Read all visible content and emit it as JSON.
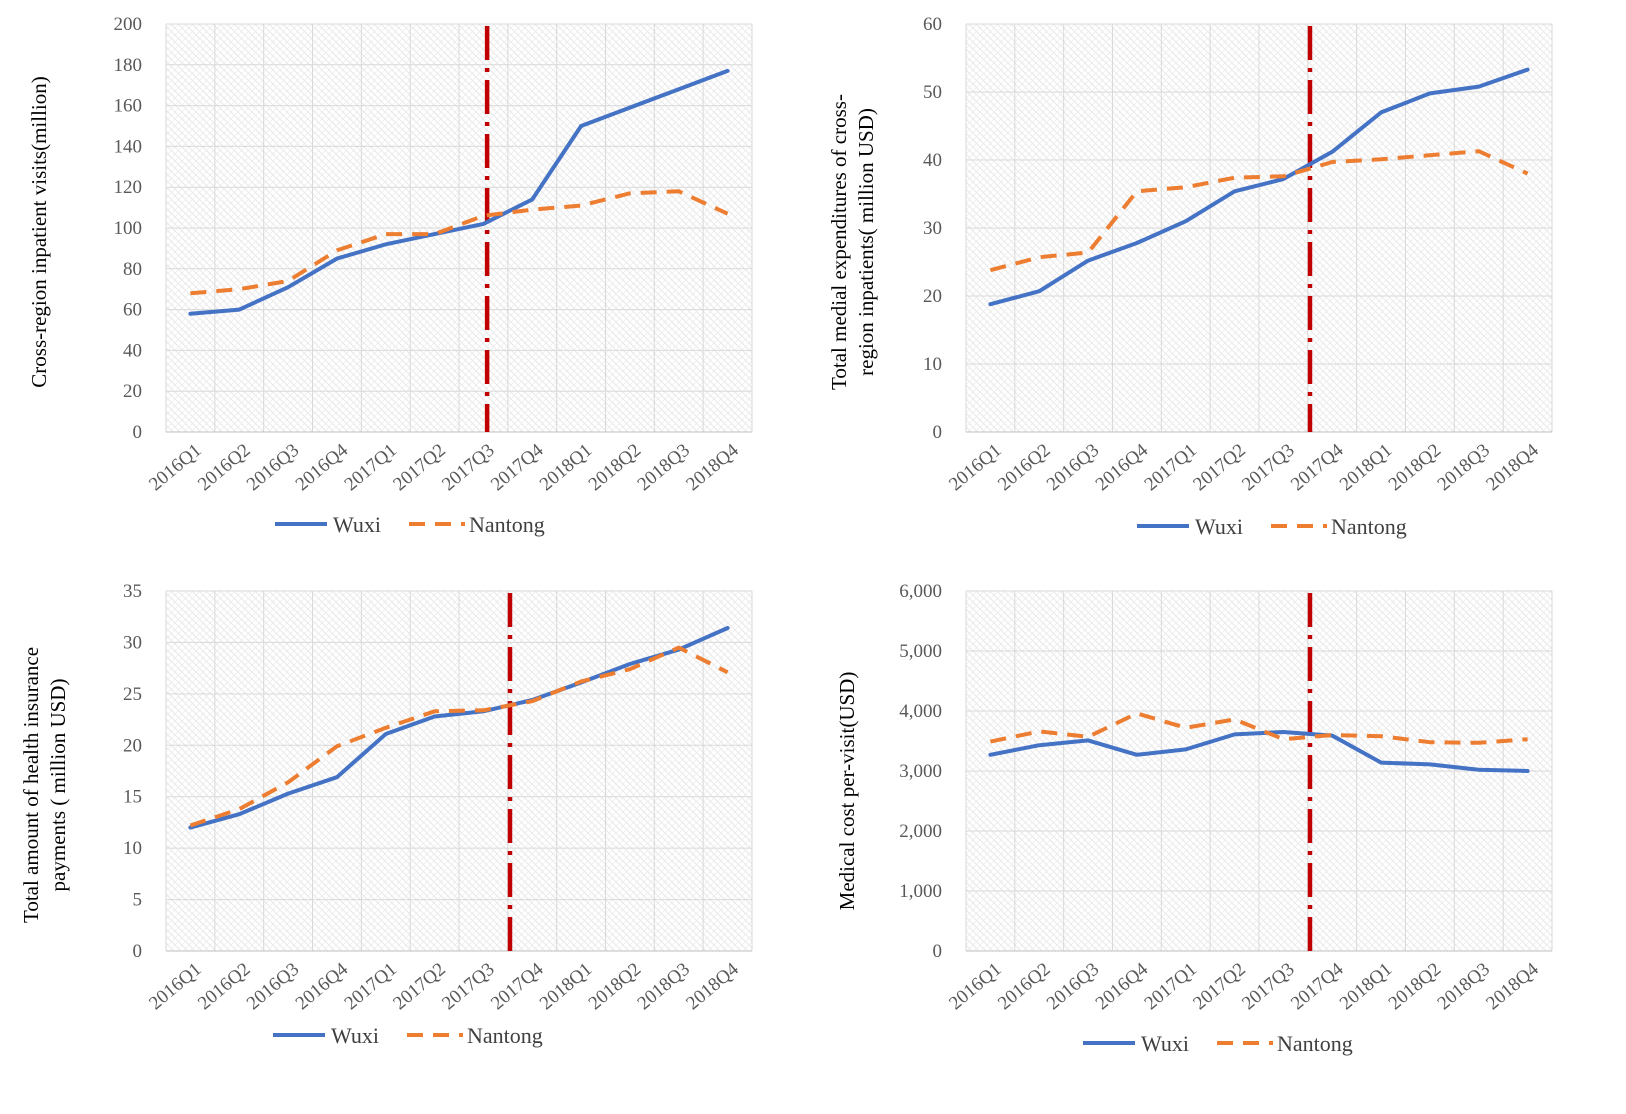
{
  "colors": {
    "wuxi": "#4472C4",
    "nantong": "#ED7D31",
    "policy_line": "#C00000",
    "grid": "#d9d9d9"
  },
  "chart_data": [
    {
      "type": "line",
      "ylabel": [
        "Cross-region inpatient visits(million)"
      ],
      "categories": [
        "2016Q1",
        "2016Q2",
        "2016Q3",
        "2016Q4",
        "2017Q1",
        "2017Q2",
        "2017Q3",
        "2017Q4",
        "2018Q1",
        "2018Q2",
        "2018Q3",
        "2018Q4"
      ],
      "ylim": [
        0,
        200
      ],
      "yticks": [
        0,
        20,
        40,
        60,
        80,
        100,
        120,
        140,
        160,
        180,
        200
      ],
      "ytick_labels": [
        "0",
        "20",
        "40",
        "60",
        "80",
        "100",
        "120",
        "140",
        "160",
        "180",
        "200"
      ],
      "policy_marker": "between 2017Q3 and 2017Q4",
      "series": [
        {
          "name": "Wuxi",
          "values": [
            58,
            60,
            71,
            85,
            92,
            97,
            102,
            114,
            150,
            159,
            168,
            177
          ]
        },
        {
          "name": "Nantong",
          "values": [
            68,
            70,
            74,
            89,
            97,
            97,
            106,
            109,
            111,
            117,
            118,
            107
          ]
        }
      ]
    },
    {
      "type": "line",
      "ylabel": [
        "Total medial expenditures of cross-",
        "region inpatients( million USD)"
      ],
      "categories": [
        "2016Q1",
        "2016Q2",
        "2016Q3",
        "2016Q4",
        "2017Q1",
        "2017Q2",
        "2017Q3",
        "2017Q4",
        "2018Q1",
        "2018Q2",
        "2018Q3",
        "2018Q4"
      ],
      "ylim": [
        0,
        60
      ],
      "yticks": [
        0,
        10,
        20,
        30,
        40,
        50,
        60
      ],
      "ytick_labels": [
        "0",
        "10",
        "20",
        "30",
        "40",
        "50",
        "60"
      ],
      "policy_marker": "between 2017Q3 and 2017Q4",
      "series": [
        {
          "name": "Wuxi",
          "values": [
            18.8,
            20.7,
            25.2,
            27.8,
            31.0,
            35.4,
            37.2,
            41.2,
            47.0,
            49.8,
            50.8,
            53.3
          ]
        },
        {
          "name": "Nantong",
          "values": [
            23.8,
            25.7,
            26.4,
            35.4,
            36.0,
            37.4,
            37.6,
            39.7,
            40.1,
            40.7,
            41.3,
            38.0
          ]
        }
      ]
    },
    {
      "type": "line",
      "ylabel": [
        "Total amount of  health insurance",
        "payments ( million USD)"
      ],
      "categories": [
        "2016Q1",
        "2016Q2",
        "2016Q3",
        "2016Q4",
        "2017Q1",
        "2017Q2",
        "2017Q3",
        "2017Q4",
        "2018Q1",
        "2018Q2",
        "2018Q3",
        "2018Q4"
      ],
      "ylim": [
        0,
        35
      ],
      "yticks": [
        0,
        5,
        10,
        15,
        20,
        25,
        30,
        35
      ],
      "ytick_labels": [
        "0",
        "5",
        "10",
        "15",
        "20",
        "25",
        "30",
        "35"
      ],
      "policy_marker": "between 2017Q3 and 2017Q4",
      "series": [
        {
          "name": "Wuxi",
          "values": [
            12.0,
            13.3,
            15.3,
            16.9,
            21.1,
            22.8,
            23.3,
            24.4,
            26.1,
            27.9,
            29.3,
            31.4
          ]
        },
        {
          "name": "Nantong",
          "values": [
            12.2,
            13.8,
            16.4,
            19.9,
            21.7,
            23.3,
            23.4,
            24.3,
            26.2,
            27.4,
            29.5,
            27.1
          ]
        }
      ]
    },
    {
      "type": "line",
      "ylabel": [
        "Medical cost per-visit(USD)"
      ],
      "categories": [
        "2016Q1",
        "2016Q2",
        "2016Q3",
        "2016Q4",
        "2017Q1",
        "2017Q2",
        "2017Q3",
        "2017Q4",
        "2018Q1",
        "2018Q2",
        "2018Q3",
        "2018Q4"
      ],
      "ylim": [
        0,
        6000
      ],
      "yticks": [
        0,
        1000,
        2000,
        3000,
        4000,
        5000,
        6000
      ],
      "ytick_labels": [
        "0",
        "1,000",
        "2,000",
        "3,000",
        "4,000",
        "5,000",
        "6,000"
      ],
      "policy_marker": "between 2017Q3 and 2017Q4",
      "series": [
        {
          "name": "Wuxi",
          "values": [
            3270,
            3430,
            3510,
            3270,
            3360,
            3610,
            3650,
            3590,
            3140,
            3110,
            3020,
            3000
          ]
        },
        {
          "name": "Nantong",
          "values": [
            3490,
            3660,
            3570,
            3960,
            3720,
            3860,
            3530,
            3600,
            3580,
            3480,
            3470,
            3530
          ]
        }
      ]
    }
  ]
}
